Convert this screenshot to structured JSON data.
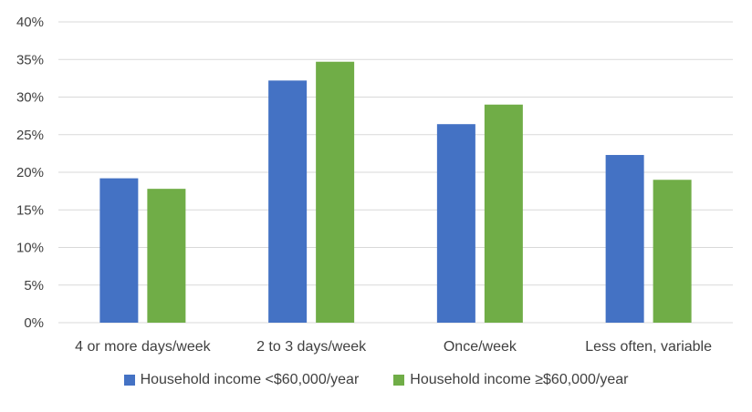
{
  "chart_data": {
    "type": "bar",
    "categories": [
      "4 or more days/week",
      "2 to 3 days/week",
      "Once/week",
      "Less often, variable"
    ],
    "series": [
      {
        "name": "Household income <$60,000/year",
        "color": "#4472C4",
        "values": [
          19.2,
          32.2,
          26.4,
          22.3
        ]
      },
      {
        "name": "Household income ≥$60,000/year",
        "color": "#70AD47",
        "values": [
          17.8,
          34.7,
          29.0,
          19.0
        ]
      }
    ],
    "ylim": [
      0,
      40
    ],
    "yticks": [
      0,
      5,
      10,
      15,
      20,
      25,
      30,
      35,
      40
    ],
    "ytick_labels": [
      "0%",
      "5%",
      "10%",
      "15%",
      "20%",
      "25%",
      "30%",
      "35%",
      "40%"
    ],
    "grid": true,
    "legend_position": "bottom",
    "title": "",
    "xlabel": "",
    "ylabel": ""
  }
}
